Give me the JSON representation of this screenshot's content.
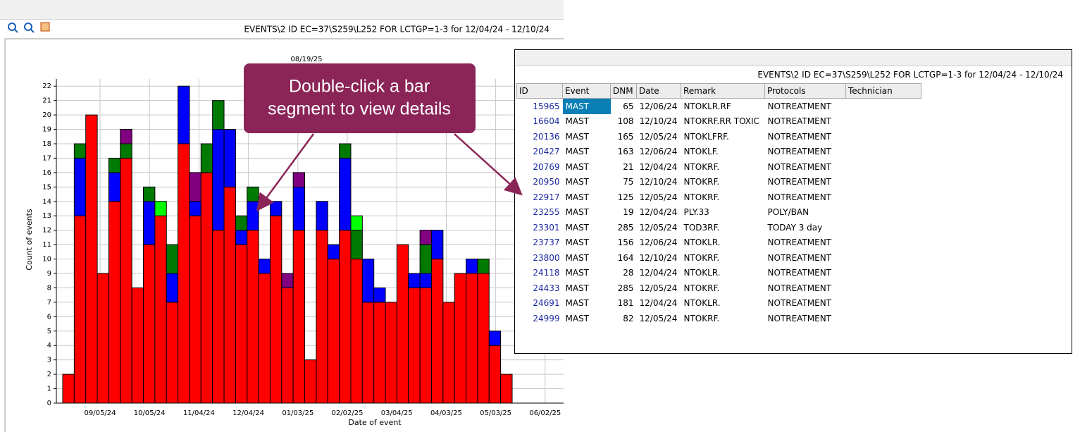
{
  "toolbar_title": "EVENTS\\2 ID EC=37\\S259\\L252 FOR LCTGP=1-3  for 12/04/24 - 12/10/24",
  "chart_data": {
    "type": "stacked_bar",
    "title": "08/19/25",
    "x_label": "Date of event",
    "y_label": "Count of events",
    "categories": [
      null,
      null,
      null,
      null,
      null,
      null,
      null,
      null,
      null,
      null,
      null,
      null,
      null,
      null,
      null,
      null,
      null,
      null,
      null,
      null,
      null,
      null,
      null,
      null,
      null,
      null,
      null,
      null,
      null,
      null,
      null,
      null,
      null,
      null,
      null,
      null,
      null,
      null,
      null
    ],
    "series": [
      {
        "color": "#ff0000",
        "values": [
          2,
          13,
          20,
          9,
          14,
          17,
          8,
          11,
          13,
          7,
          18,
          13,
          16,
          12,
          15,
          11,
          12,
          9,
          13,
          8,
          12,
          3,
          12,
          10,
          12,
          10,
          7,
          7,
          7,
          11,
          8,
          8,
          10,
          7,
          9,
          9,
          9,
          4,
          2
        ]
      },
      {
        "color": "#0000ff",
        "values": [
          0,
          4,
          0,
          0,
          2,
          0,
          0,
          3,
          0,
          2,
          4,
          1,
          0,
          7,
          4,
          1,
          2,
          1,
          1,
          0,
          3,
          0,
          2,
          1,
          5,
          0,
          3,
          1,
          0,
          0,
          1,
          1,
          2,
          0,
          0,
          1,
          0,
          1,
          0
        ]
      },
      {
        "color": "#007a00",
        "values": [
          0,
          1,
          0,
          0,
          1,
          1,
          0,
          1,
          0,
          2,
          0,
          0,
          2,
          2,
          0,
          1,
          1,
          0,
          0,
          0,
          0,
          0,
          0,
          0,
          1,
          2,
          0,
          0,
          0,
          0,
          0,
          2,
          0,
          0,
          0,
          0,
          1,
          0,
          0
        ]
      },
      {
        "color": "#800080",
        "values": [
          0,
          0,
          0,
          0,
          0,
          1,
          0,
          0,
          0,
          0,
          0,
          2,
          0,
          0,
          0,
          0,
          0,
          0,
          0,
          1,
          1,
          0,
          0,
          0,
          0,
          0,
          0,
          0,
          0,
          0,
          0,
          1,
          0,
          0,
          0,
          0,
          0,
          0,
          0
        ]
      },
      {
        "color": "#00ff00",
        "values": [
          0,
          0,
          0,
          0,
          0,
          0,
          0,
          0,
          1,
          0,
          0,
          0,
          0,
          0,
          0,
          0,
          0,
          0,
          0,
          0,
          0,
          0,
          0,
          0,
          0,
          1,
          0,
          0,
          0,
          0,
          0,
          0,
          0,
          0,
          0,
          0,
          0,
          0,
          0
        ]
      }
    ],
    "ylim": [
      0,
      22.5
    ],
    "yticks": [
      0,
      1,
      2,
      3,
      4,
      5,
      6,
      7,
      8,
      9,
      10,
      11,
      12,
      13,
      14,
      15,
      16,
      17,
      18,
      19,
      20,
      21,
      22
    ],
    "xtick_labels": [
      "09/05/24",
      "10/05/24",
      "11/04/24",
      "12/04/24",
      "01/03/25",
      "02/02/25",
      "03/04/25",
      "04/03/25",
      "05/03/25",
      "06/02/25"
    ],
    "grid": true
  },
  "callout": {
    "lines": [
      "Double-click a bar",
      "segment to view details"
    ]
  },
  "table": {
    "title": "EVENTS\\2 ID EC=37\\S259\\L252 FOR LCTGP=1-3  for 12/04/24 - 12/10/24",
    "columns": [
      "ID",
      "Event",
      "DNM",
      "Date",
      "Remark",
      "Protocols",
      "Technician"
    ],
    "rows": [
      [
        "15965",
        "MAST",
        "65",
        "12/06/24",
        "NTOKLR.RF",
        "NOTREATMENT",
        ""
      ],
      [
        "16604",
        "MAST",
        "108",
        "12/10/24",
        "NTOKRF.RR TOXIC",
        "NOTREATMENT",
        ""
      ],
      [
        "20136",
        "MAST",
        "165",
        "12/05/24",
        "NTOKLFRF.",
        "NOTREATMENT",
        ""
      ],
      [
        "20427",
        "MAST",
        "163",
        "12/06/24",
        "NTOKLF.",
        "NOTREATMENT",
        ""
      ],
      [
        "20769",
        "MAST",
        "21",
        "12/04/24",
        "NTOKRF.",
        "NOTREATMENT",
        ""
      ],
      [
        "20950",
        "MAST",
        "75",
        "12/10/24",
        "NTOKRF.",
        "NOTREATMENT",
        ""
      ],
      [
        "22917",
        "MAST",
        "125",
        "12/05/24",
        "NTOKRF.",
        "NOTREATMENT",
        ""
      ],
      [
        "23255",
        "MAST",
        "19",
        "12/04/24",
        "PLY.33",
        "POLY/BAN",
        ""
      ],
      [
        "23301",
        "MAST",
        "285",
        "12/05/24",
        "TOD3RF.",
        "TODAY 3 day",
        ""
      ],
      [
        "23737",
        "MAST",
        "156",
        "12/06/24",
        "NTOKLR.",
        "NOTREATMENT",
        ""
      ],
      [
        "23800",
        "MAST",
        "164",
        "12/10/24",
        "NTOKRF.",
        "NOTREATMENT",
        ""
      ],
      [
        "24118",
        "MAST",
        "28",
        "12/04/24",
        "NTOKLR.",
        "NOTREATMENT",
        ""
      ],
      [
        "24433",
        "MAST",
        "285",
        "12/05/24",
        "NTOKRF.",
        "NOTREATMENT",
        ""
      ],
      [
        "24691",
        "MAST",
        "181",
        "12/04/24",
        "NTOKLR.",
        "NOTREATMENT",
        ""
      ],
      [
        "24999",
        "MAST",
        "82",
        "12/05/24",
        "NTOKRF.",
        "NOTREATMENT",
        ""
      ]
    ]
  }
}
